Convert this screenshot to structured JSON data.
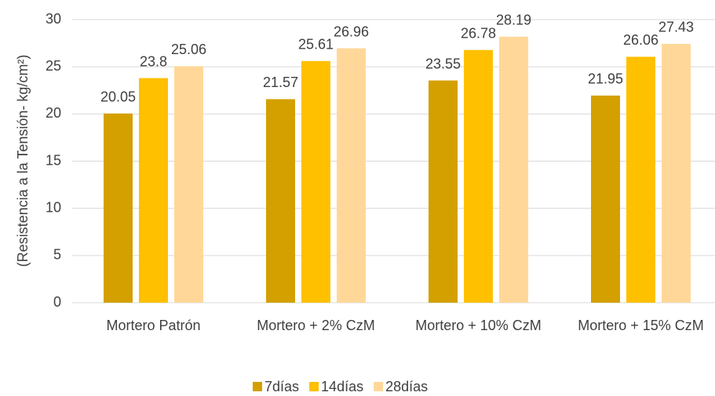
{
  "chart_data": {
    "type": "bar",
    "y_label": "(Resistencia a la Tensión- kg/cm²)",
    "categories": [
      "Mortero Patrón",
      "Mortero + 2% CzM",
      "Mortero + 10% CzM",
      "Mortero + 15% CzM"
    ],
    "series": [
      {
        "name": "7días",
        "color": "#d4a000",
        "values": [
          20.05,
          21.57,
          23.55,
          21.95
        ]
      },
      {
        "name": "14días",
        "color": "#ffc000",
        "values": [
          23.8,
          25.61,
          26.78,
          26.06
        ]
      },
      {
        "name": "28días",
        "color": "#ffd899",
        "values": [
          25.06,
          26.96,
          28.19,
          27.43
        ]
      }
    ],
    "ylim": [
      0,
      30
    ],
    "yticks": [
      0,
      5,
      10,
      15,
      20,
      25,
      30
    ],
    "grid": true,
    "legend": "bottom"
  }
}
